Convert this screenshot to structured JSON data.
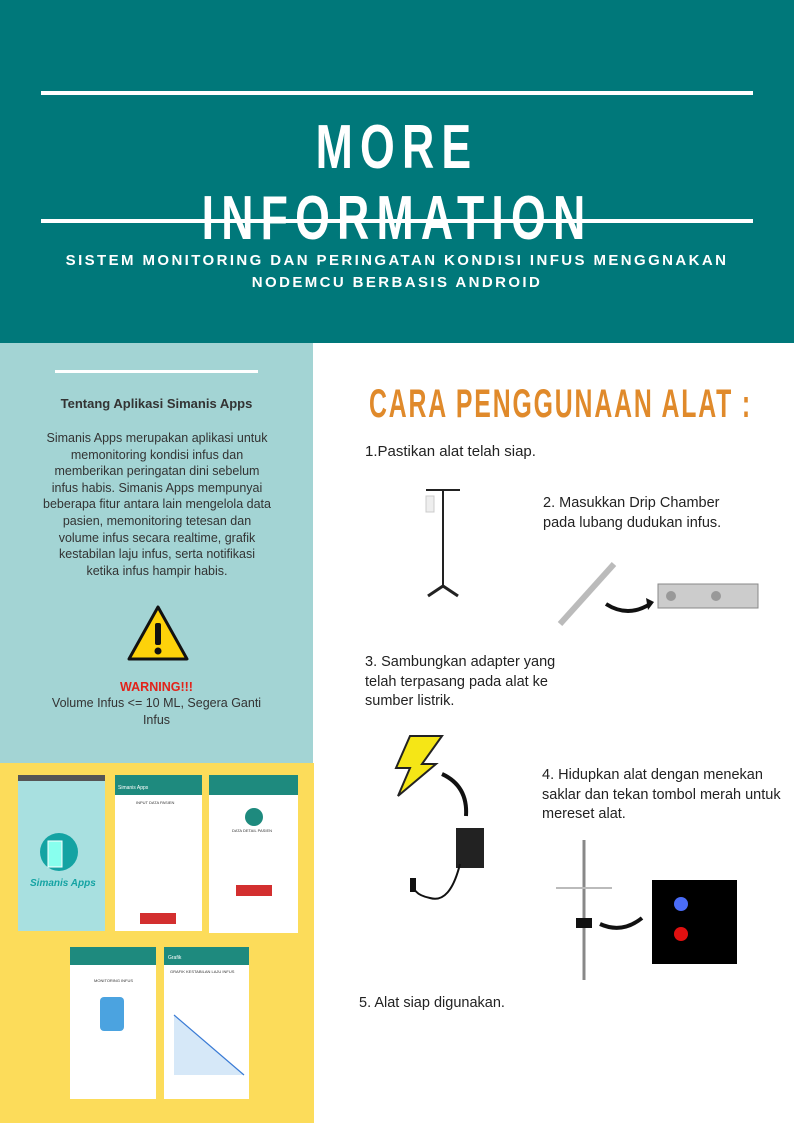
{
  "header": {
    "title": "MORE INFORMATION",
    "subtitle": "SISTEM MONITORING DAN PERINGATAN KONDISI INFUS MENGGNAKAN NODEMCU BERBASIS ANDROID"
  },
  "sidebar": {
    "heading": "Tentang Aplikasi Simanis Apps",
    "body": "Simanis Apps merupakan aplikasi untuk memonitoring kondisi infus dan memberikan peringatan dini sebelum infus habis. Simanis Apps mempunyai beberapa fitur antara lain mengelola data pasien, memonitoring tetesan dan volume infus secara realtime, grafik kestabilan laju infus, serta notifikasi ketika infus hampir habis.",
    "warning_label": "WARNING!!!",
    "warning_text": "Volume Infus <= 10 ML, Segera Ganti Infus"
  },
  "screens": {
    "logo": "Simanis Apps",
    "app_bar": "Simanis Apps",
    "graph_bar": "Grafik",
    "input": "INPUT DATA PASIEN",
    "detail": "DATA DETAIL PASIEN",
    "monitoring": "MONITORING INFUS",
    "graph": "GRAFIK KESTABILAN LAJU INFUS"
  },
  "steps": {
    "title": "CARA PENGGUNAAN ALAT :",
    "items": [
      "1.Pastikan alat telah siap.",
      "2. Masukkan Drip Chamber pada lubang dudukan infus.",
      "3. Sambungkan adapter yang telah terpasang pada alat ke sumber listrik.",
      "4. Hidupkan alat dengan menekan saklar dan tekan tombol merah untuk mereset alat.",
      "5. Alat siap digunakan."
    ]
  }
}
